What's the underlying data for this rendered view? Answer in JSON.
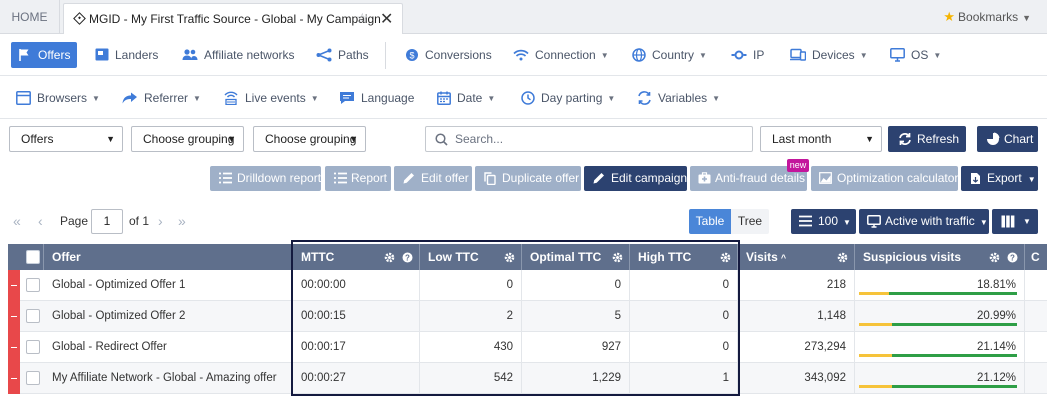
{
  "tabs": {
    "home": "HOME",
    "active_title": "MGID - My First Traffic Source - Global - My Campaign",
    "bookmarks": "Bookmarks"
  },
  "nav_row1": [
    {
      "label": "Offers",
      "icon": "flag-icon",
      "active": true
    },
    {
      "label": "Landers",
      "icon": "lander-icon"
    },
    {
      "label": "Affiliate networks",
      "icon": "users-icon"
    },
    {
      "label": "Paths",
      "icon": "paths-icon"
    },
    {
      "label": "Conversions",
      "icon": "conversions-icon"
    },
    {
      "label": "Connection",
      "icon": "wifi-icon",
      "dropdown": true
    },
    {
      "label": "Country",
      "icon": "globe-icon",
      "dropdown": true
    },
    {
      "label": "IP",
      "icon": "ip-icon"
    },
    {
      "label": "Devices",
      "icon": "devices-icon",
      "dropdown": true
    },
    {
      "label": "OS",
      "icon": "monitor-icon",
      "dropdown": true
    }
  ],
  "nav_row2": [
    {
      "label": "Browsers",
      "icon": "browser-icon",
      "dropdown": true
    },
    {
      "label": "Referrer",
      "icon": "share-icon",
      "dropdown": true
    },
    {
      "label": "Live events",
      "icon": "live-icon",
      "dropdown": true
    },
    {
      "label": "Language",
      "icon": "chat-icon"
    },
    {
      "label": "Date",
      "icon": "calendar-icon",
      "dropdown": true
    },
    {
      "label": "Day parting",
      "icon": "clock-icon",
      "dropdown": true
    },
    {
      "label": "Variables",
      "icon": "variables-icon",
      "dropdown": true
    }
  ],
  "filters": {
    "entity_select": "Offers",
    "grouping1": "Choose grouping",
    "grouping2": "Choose grouping",
    "search_placeholder": "Search...",
    "date_range": "Last month",
    "refresh": "Refresh",
    "chart": "Chart"
  },
  "actions": {
    "drilldown": "Drilldown report",
    "report": "Report",
    "edit_offer": "Edit offer",
    "duplicate_offer": "Duplicate offer",
    "edit_campaign": "Edit campaign",
    "anti_fraud": "Anti-fraud details",
    "new_badge": "new",
    "optimization": "Optimization calculator",
    "export": "Export"
  },
  "pagination": {
    "page_label": "Page",
    "page_value": "1",
    "of_label": "of 1"
  },
  "view": {
    "table": "Table",
    "tree": "Tree",
    "per_page": "100",
    "filter": "Active with traffic"
  },
  "table": {
    "headers": {
      "offer": "Offer",
      "mttc": "MTTC",
      "low_ttc": "Low TTC",
      "optimal_ttc": "Optimal TTC",
      "high_ttc": "High TTC",
      "visits": "Visits",
      "suspicious": "Suspicious visits",
      "next": "C"
    },
    "rows": [
      {
        "offer": "Global - Optimized Offer 1",
        "mttc": "00:00:00",
        "low": "0",
        "optimal": "0",
        "high": "0",
        "visits": "218",
        "suspicious": "18.81%",
        "susp_fraction": 0.1881
      },
      {
        "offer": "Global - Optimized Offer 2",
        "mttc": "00:00:15",
        "low": "2",
        "optimal": "5",
        "high": "0",
        "visits": "1,148",
        "suspicious": "20.99%",
        "susp_fraction": 0.2099
      },
      {
        "offer": "Global - Redirect Offer",
        "mttc": "00:00:17",
        "low": "430",
        "optimal": "927",
        "high": "0",
        "visits": "273,294",
        "suspicious": "21.14%",
        "susp_fraction": 0.2114
      },
      {
        "offer": "My Affiliate Network - Global - Amazing offer",
        "mttc": "00:00:27",
        "low": "542",
        "optimal": "1,229",
        "high": "1",
        "visits": "343,092",
        "suspicious": "21.12%",
        "susp_fraction": 0.2112
      }
    ]
  },
  "colors": {
    "accent": "#3f7bd8",
    "dark_button": "#2c4270",
    "disabled_button": "#9fb0c8",
    "header_bg": "#5f6f8c",
    "row_marker": "#e8484a",
    "badge": "#c3169c"
  }
}
